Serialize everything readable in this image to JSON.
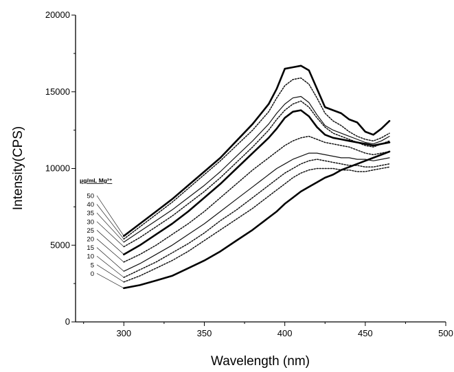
{
  "chart_data": {
    "type": "line",
    "xlabel": "Wavelength (nm)",
    "ylabel": "Intensity(CPS)",
    "xlim": [
      270,
      500
    ],
    "ylim": [
      0,
      20000
    ],
    "xticks": [
      300,
      350,
      400,
      450,
      500
    ],
    "yticks": [
      0,
      5000,
      10000,
      15000,
      20000
    ],
    "grid": false,
    "legend_title": "μg/mL Mg²⁺",
    "legend_placement": "left, leader lines to series starts",
    "x": [
      300,
      310,
      320,
      330,
      340,
      350,
      360,
      370,
      380,
      390,
      395,
      400,
      405,
      410,
      415,
      420,
      425,
      430,
      435,
      440,
      445,
      450,
      455,
      460,
      465
    ],
    "series": [
      {
        "name": "50",
        "style": "thick-solid",
        "values": [
          5600,
          6400,
          7200,
          8000,
          8900,
          9800,
          10700,
          11800,
          12900,
          14200,
          15200,
          16500,
          16600,
          16700,
          16400,
          15200,
          14000,
          13800,
          13600,
          13200,
          13000,
          12400,
          12200,
          12600,
          13100
        ]
      },
      {
        "name": "40",
        "style": "dotted",
        "values": [
          5400,
          6200,
          7000,
          7800,
          8700,
          9600,
          10500,
          11500,
          12500,
          13700,
          14600,
          15400,
          15800,
          15900,
          15500,
          14600,
          13600,
          13100,
          12800,
          12400,
          12100,
          11900,
          11800,
          12000,
          12300
        ]
      },
      {
        "name": "35",
        "style": "thin-solid",
        "values": [
          5200,
          5900,
          6600,
          7300,
          8100,
          8900,
          9800,
          10800,
          11800,
          12900,
          13600,
          14200,
          14600,
          14700,
          14300,
          13500,
          12800,
          12500,
          12300,
          12100,
          11900,
          11700,
          11600,
          11800,
          12100
        ]
      },
      {
        "name": "30",
        "style": "dotted",
        "values": [
          4900,
          5500,
          6200,
          6900,
          7700,
          8500,
          9400,
          10400,
          11400,
          12500,
          13200,
          13800,
          14200,
          14400,
          14000,
          13300,
          12700,
          12300,
          12100,
          11900,
          11700,
          11500,
          11400,
          11600,
          11800
        ]
      },
      {
        "name": "25",
        "style": "thick-solid",
        "values": [
          4400,
          5000,
          5700,
          6400,
          7200,
          8100,
          9000,
          10000,
          11000,
          12000,
          12600,
          13300,
          13700,
          13800,
          13400,
          12700,
          12200,
          12000,
          11900,
          11800,
          11700,
          11600,
          11500,
          11600,
          11700
        ]
      },
      {
        "name": "20",
        "style": "dotted",
        "values": [
          3900,
          4400,
          5000,
          5700,
          6400,
          7200,
          8100,
          9000,
          9900,
          10700,
          11100,
          11500,
          11800,
          12000,
          12100,
          11900,
          11700,
          11600,
          11500,
          11400,
          11200,
          11000,
          10900,
          11000,
          11100
        ]
      },
      {
        "name": "15",
        "style": "thin-solid",
        "values": [
          3300,
          3800,
          4400,
          5000,
          5700,
          6400,
          7200,
          8000,
          8800,
          9600,
          10000,
          10300,
          10600,
          10800,
          11000,
          11000,
          10900,
          10800,
          10700,
          10700,
          10600,
          10600,
          10500,
          10600,
          10700
        ]
      },
      {
        "name": "10",
        "style": "dotted",
        "values": [
          2900,
          3400,
          3900,
          4500,
          5100,
          5800,
          6600,
          7300,
          8100,
          8900,
          9300,
          9700,
          10000,
          10300,
          10500,
          10600,
          10500,
          10400,
          10300,
          10200,
          10200,
          10100,
          10100,
          10200,
          10300
        ]
      },
      {
        "name": "5",
        "style": "dotted",
        "values": [
          2600,
          3000,
          3500,
          4000,
          4600,
          5300,
          6000,
          6700,
          7400,
          8200,
          8600,
          9000,
          9400,
          9700,
          9900,
          10000,
          10000,
          10000,
          9900,
          9900,
          9800,
          9800,
          9900,
          10000,
          10100
        ]
      },
      {
        "name": "0",
        "style": "thick-solid",
        "values": [
          2200,
          2400,
          2700,
          3000,
          3500,
          4000,
          4600,
          5300,
          6000,
          6800,
          7200,
          7700,
          8100,
          8500,
          8800,
          9100,
          9400,
          9600,
          9900,
          10100,
          10300,
          10500,
          10700,
          10900,
          11100
        ]
      }
    ]
  }
}
